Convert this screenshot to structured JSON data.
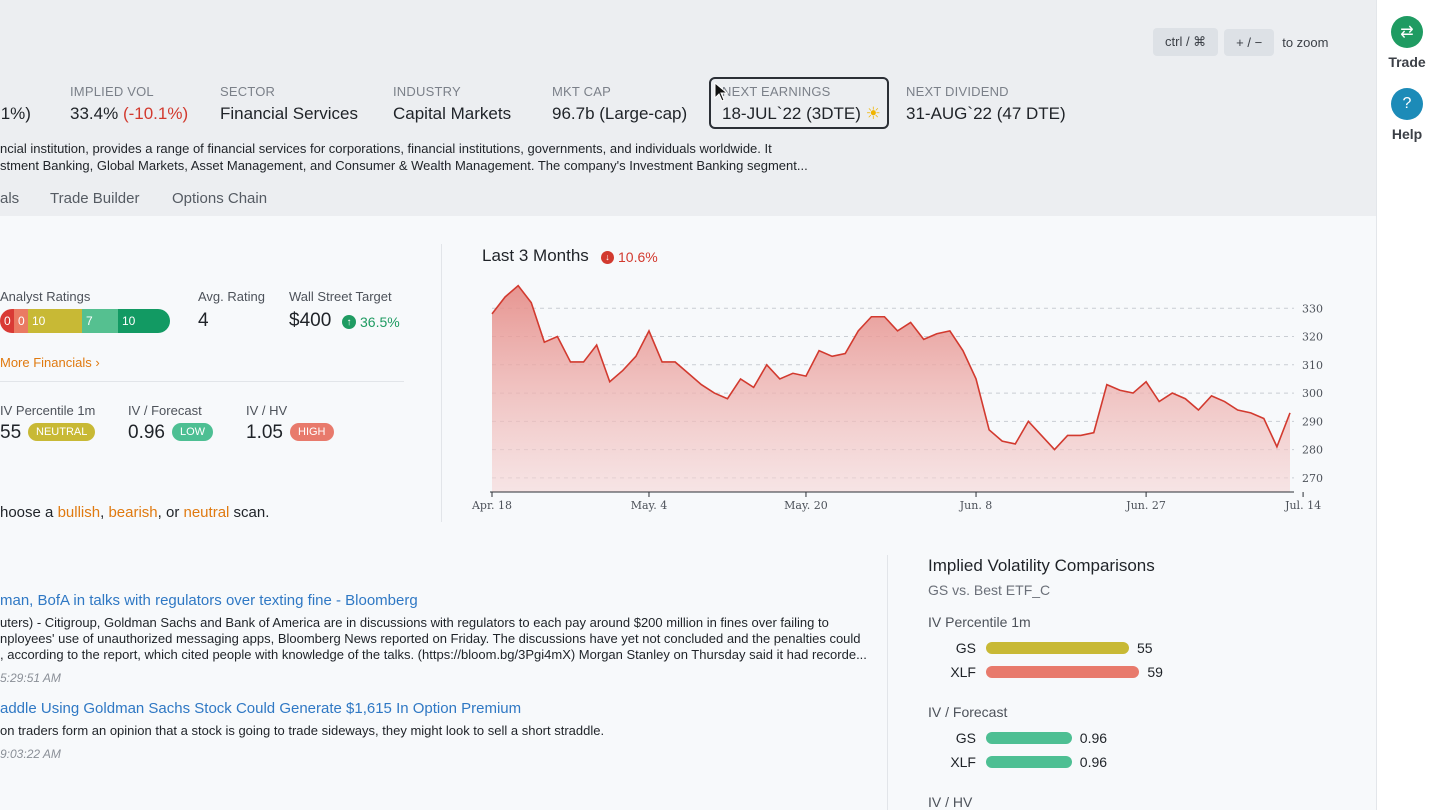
{
  "zoom": {
    "key1": "ctrl / ⌘",
    "key2": "+ / −",
    "text": "to zoom"
  },
  "stats": {
    "partial_value": ".1%)",
    "implied_vol": {
      "label": "IMPLIED VOL",
      "value": "33.4%",
      "change": "(-10.1%)"
    },
    "sector": {
      "label": "SECTOR",
      "value": "Financial Services"
    },
    "industry": {
      "label": "INDUSTRY",
      "value": "Capital Markets"
    },
    "mkt_cap": {
      "label": "MKT CAP",
      "value": "96.7b (Large-cap)"
    },
    "next_earnings": {
      "label": "NEXT EARNINGS",
      "value": "18-JUL`22 (3DTE)",
      "icon": "sun-icon"
    },
    "next_dividend": {
      "label": "NEXT DIVIDEND",
      "value": "31-AUG`22 (47 DTE)"
    }
  },
  "description": {
    "line1": "ncial institution, provides a range of financial services for corporations, financial institutions, governments, and individuals worldwide. It",
    "line2": "stment Banking, Global Markets, Asset Management, and Consumer & Wealth Management. The company's Investment Banking segment..."
  },
  "tabs": [
    "als",
    "Trade Builder",
    "Options Chain"
  ],
  "analyst": {
    "label": "Analyst Ratings",
    "segments": [
      "0",
      "0",
      "10",
      "7",
      "10"
    ],
    "avg_label": "Avg. Rating",
    "avg_value": "4",
    "target_label": "Wall Street Target",
    "target_value": "$400",
    "target_change": "36.5%",
    "more_link": "More Financials ›"
  },
  "iv_stats": {
    "percentile_label": "IV Percentile 1m",
    "percentile_value": "55",
    "percentile_pill": "NEUTRAL",
    "forecast_label": "IV / Forecast",
    "forecast_value": "0.96",
    "forecast_pill": "LOW",
    "hv_label": "IV / HV",
    "hv_value": "1.05",
    "hv_pill": "HIGH"
  },
  "scan": {
    "prefix": "hoose a",
    "bullish": "bullish",
    "sep1": ",",
    "bearish": "bearish",
    "sep2": ", or",
    "neutral": "neutral",
    "suffix": "scan."
  },
  "news": [
    {
      "title": "man, BofA in talks with regulators over texting fine - Bloomberg",
      "lines": [
        "uters) - Citigroup, Goldman Sachs and Bank of America are in discussions with regulators to each pay around $200 million in fines over failing to",
        "nployees' use of unauthorized messaging apps, Bloomberg News reported on Friday. The discussions have yet not concluded and the penalties could",
        ", according to the report, which cited people with knowledge of the talks. (https://bloom.bg/3Pgi4mX) Morgan Stanley on Thursday said it had recorde..."
      ],
      "time": "5:29:51 AM"
    },
    {
      "title": "addle Using Goldman Sachs Stock Could Generate $1,615 In Option Premium",
      "lines": [
        "on traders form an opinion that a stock is going to trade sideways, they might look to sell a short straddle."
      ],
      "time": "9:03:22 AM"
    }
  ],
  "chart_header": {
    "title": "Last 3 Months",
    "change": "10.6%"
  },
  "chart_data": {
    "type": "area",
    "ylim": [
      265,
      340
    ],
    "yticks": [
      270,
      280,
      290,
      300,
      310,
      320,
      330
    ],
    "xticks": [
      {
        "label": "Apr. 18",
        "i": 0
      },
      {
        "label": "May. 4",
        "i": 12
      },
      {
        "label": "May. 20",
        "i": 24
      },
      {
        "label": "Jun. 8",
        "i": 37
      },
      {
        "label": "Jun. 27",
        "i": 50
      },
      {
        "label": "Jul. 14",
        "i": 62
      }
    ],
    "values": [
      328,
      334,
      338,
      332,
      318,
      320,
      311,
      311,
      317,
      304,
      308,
      313,
      322,
      311,
      311,
      307,
      303,
      300,
      298,
      305,
      302,
      310,
      305,
      307,
      306,
      315,
      313,
      314,
      322,
      327,
      327,
      322,
      325,
      319,
      321,
      322,
      315,
      305,
      287,
      283,
      282,
      290,
      285,
      280,
      285,
      285,
      286,
      303,
      301,
      300,
      304,
      297,
      300,
      298,
      294,
      299,
      297,
      294,
      293,
      291,
      281,
      293
    ],
    "color": "#d23a2f"
  },
  "ivc": {
    "title": "Implied Volatility Comparisons",
    "subtitle": "GS vs. Best ETF_C",
    "sections": [
      {
        "label": "IV Percentile 1m",
        "rows": [
          {
            "name": "GS",
            "value": "55",
            "frac": 0.55,
            "color": "#c8b935"
          },
          {
            "name": "XLF",
            "value": "59",
            "frac": 0.59,
            "color": "#e87a6c"
          }
        ]
      },
      {
        "label": "IV / Forecast",
        "rows": [
          {
            "name": "GS",
            "value": "0.96",
            "frac": 0.33,
            "color": "#4dbf93"
          },
          {
            "name": "XLF",
            "value": "0.96",
            "frac": 0.33,
            "color": "#4dbf93"
          }
        ]
      },
      {
        "label": "IV / HV",
        "rows": []
      }
    ]
  },
  "rightbar": {
    "trade_label": "Trade",
    "help_label": "Help"
  },
  "colors": {
    "accent_green": "#1f9b62",
    "accent_red": "#d23a2f",
    "link_blue": "#2f78c4",
    "link_orange": "#e07a10",
    "trade_btn": "#1f9b62",
    "help_btn": "#1c8bb8"
  }
}
